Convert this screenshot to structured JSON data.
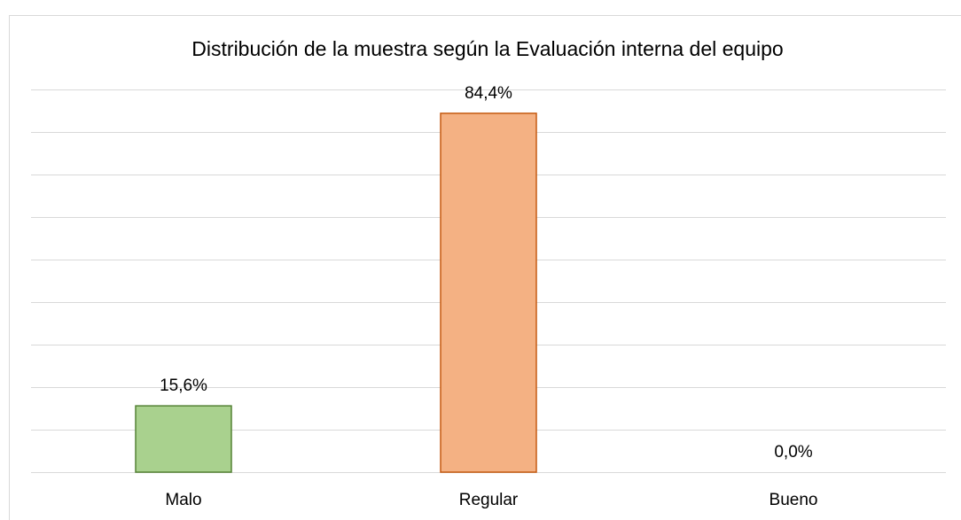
{
  "chart_data": {
    "type": "bar",
    "title": "Distribución de la muestra según la Evaluación interna del equipo",
    "categories": [
      "Malo",
      "Regular",
      "Bueno"
    ],
    "values": [
      15.6,
      84.4,
      0.0
    ],
    "value_labels": [
      "15,6%",
      "84,4%",
      "0,0%"
    ],
    "colors": [
      "#a9d18e",
      "#f4b183",
      "#9dc3e6"
    ],
    "edge_colors": [
      "#548235",
      "#c55a11",
      "#2e75b6"
    ],
    "ylim": [
      0,
      90
    ],
    "yticks": [
      0,
      10,
      20,
      30,
      40,
      50,
      60,
      70,
      80,
      90
    ],
    "grid": true
  }
}
